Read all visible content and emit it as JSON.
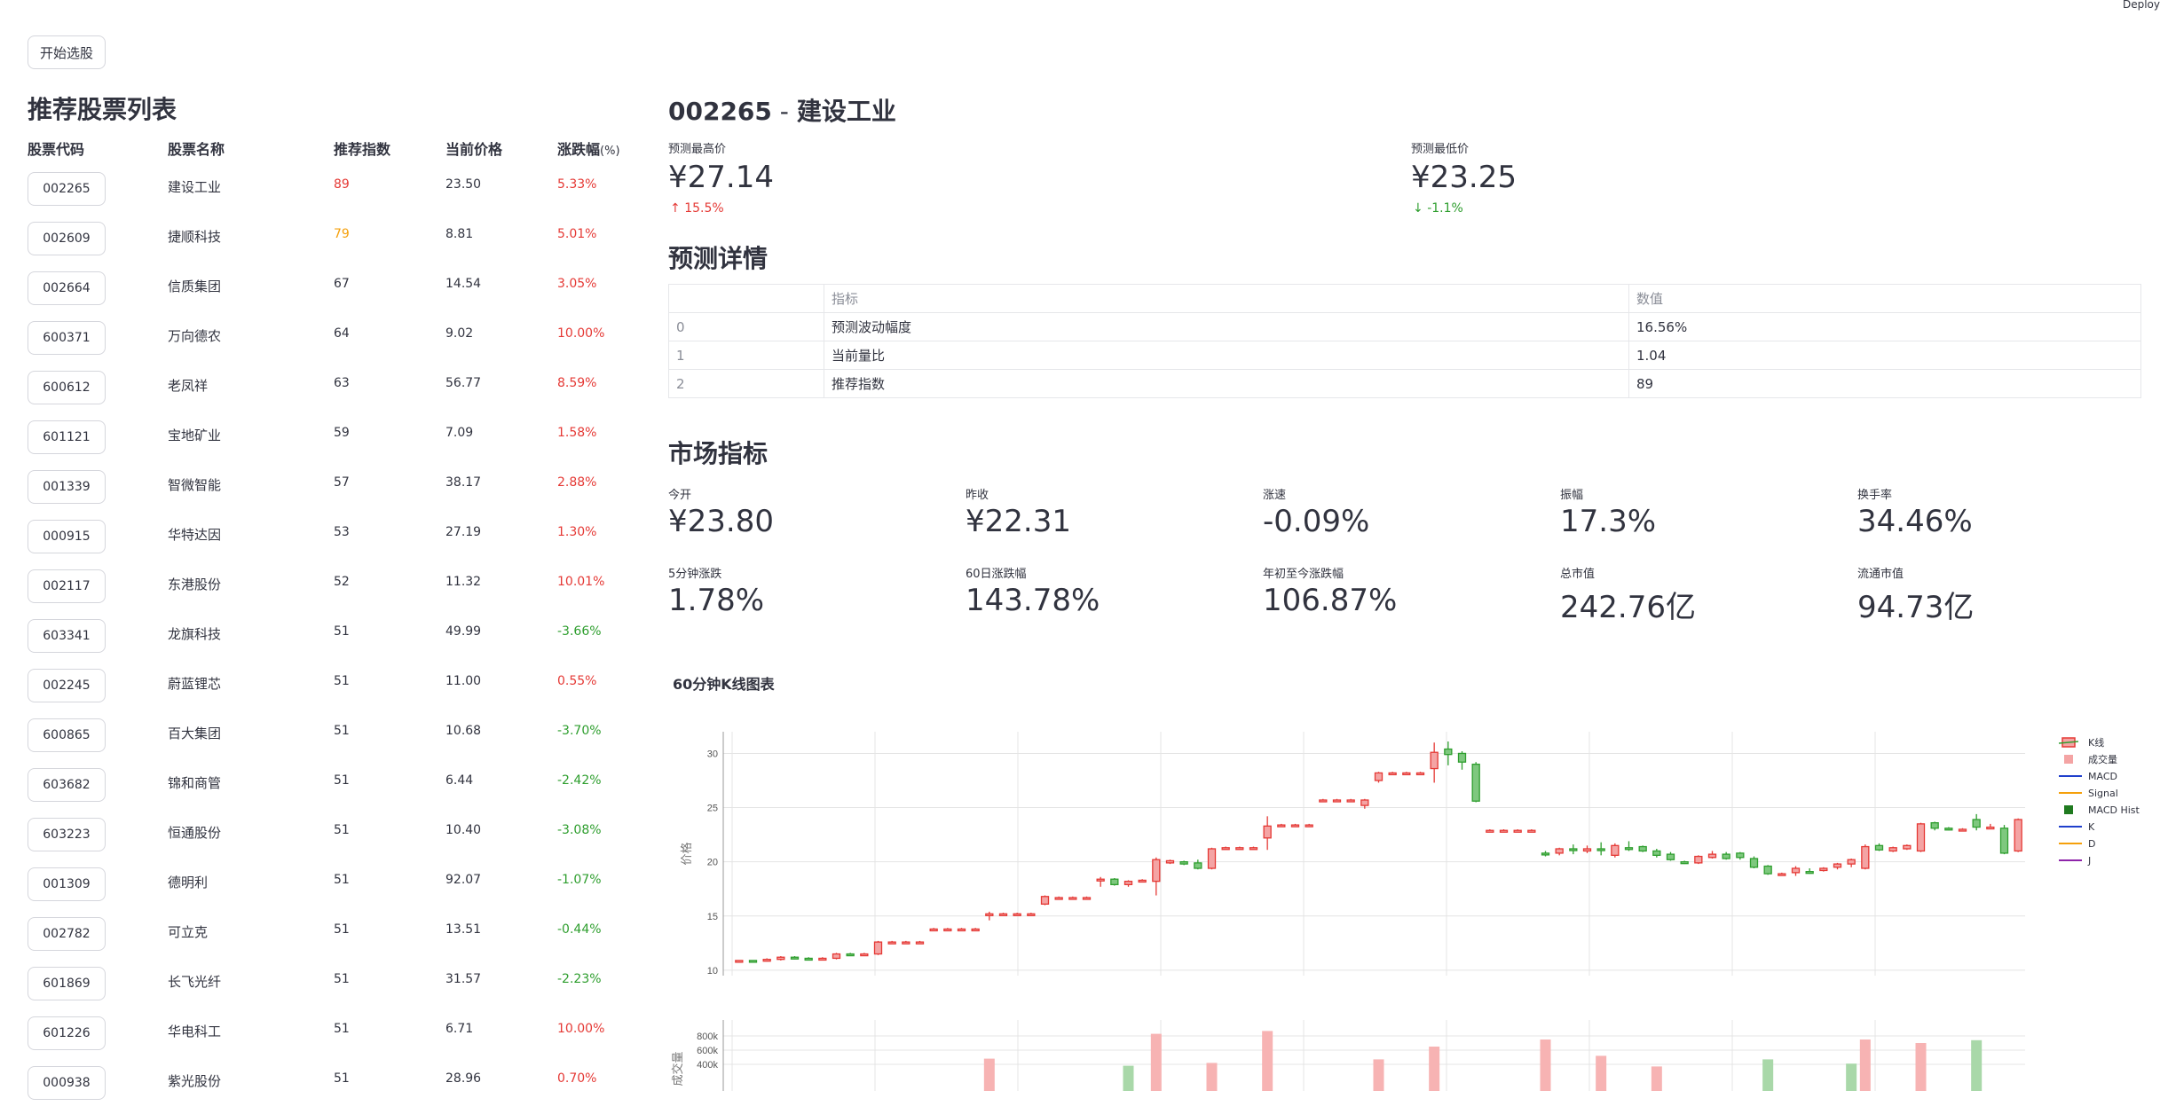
{
  "header": {
    "deploy": "Deploy"
  },
  "left": {
    "start_button": "开始选股",
    "title": "推荐股票列表",
    "columns": [
      "股票代码",
      "股票名称",
      "推荐指数",
      "当前价格",
      "涨跌幅"
    ],
    "change_unit": "(%)",
    "stocks": [
      {
        "code": "002265",
        "name": "建设工业",
        "score": "89",
        "price": "23.50",
        "change": "5.33%",
        "score_color": "#e53935",
        "change_color": "#e53935"
      },
      {
        "code": "002609",
        "name": "捷顺科技",
        "score": "79",
        "price": "8.81",
        "change": "5.01%",
        "score_color": "#f5a00b",
        "change_color": "#e53935"
      },
      {
        "code": "002664",
        "name": "信质集团",
        "score": "67",
        "price": "14.54",
        "change": "3.05%",
        "score_color": "#31333f",
        "change_color": "#e53935"
      },
      {
        "code": "600371",
        "name": "万向德农",
        "score": "64",
        "price": "9.02",
        "change": "10.00%",
        "score_color": "#31333f",
        "change_color": "#e53935"
      },
      {
        "code": "600612",
        "name": "老凤祥",
        "score": "63",
        "price": "56.77",
        "change": "8.59%",
        "score_color": "#31333f",
        "change_color": "#e53935"
      },
      {
        "code": "601121",
        "name": "宝地矿业",
        "score": "59",
        "price": "7.09",
        "change": "1.58%",
        "score_color": "#31333f",
        "change_color": "#e53935"
      },
      {
        "code": "001339",
        "name": "智微智能",
        "score": "57",
        "price": "38.17",
        "change": "2.88%",
        "score_color": "#31333f",
        "change_color": "#e53935"
      },
      {
        "code": "000915",
        "name": "华特达因",
        "score": "53",
        "price": "27.19",
        "change": "1.30%",
        "score_color": "#31333f",
        "change_color": "#e53935"
      },
      {
        "code": "002117",
        "name": "东港股份",
        "score": "52",
        "price": "11.32",
        "change": "10.01%",
        "score_color": "#31333f",
        "change_color": "#e53935"
      },
      {
        "code": "603341",
        "name": "龙旗科技",
        "score": "51",
        "price": "49.99",
        "change": "-3.66%",
        "score_color": "#31333f",
        "change_color": "#2e9e2e"
      },
      {
        "code": "002245",
        "name": "蔚蓝锂芯",
        "score": "51",
        "price": "11.00",
        "change": "0.55%",
        "score_color": "#31333f",
        "change_color": "#e53935"
      },
      {
        "code": "600865",
        "name": "百大集团",
        "score": "51",
        "price": "10.68",
        "change": "-3.70%",
        "score_color": "#31333f",
        "change_color": "#2e9e2e"
      },
      {
        "code": "603682",
        "name": "锦和商管",
        "score": "51",
        "price": "6.44",
        "change": "-2.42%",
        "score_color": "#31333f",
        "change_color": "#2e9e2e"
      },
      {
        "code": "603223",
        "name": "恒通股份",
        "score": "51",
        "price": "10.40",
        "change": "-3.08%",
        "score_color": "#31333f",
        "change_color": "#2e9e2e"
      },
      {
        "code": "001309",
        "name": "德明利",
        "score": "51",
        "price": "92.07",
        "change": "-1.07%",
        "score_color": "#31333f",
        "change_color": "#2e9e2e"
      },
      {
        "code": "002782",
        "name": "可立克",
        "score": "51",
        "price": "13.51",
        "change": "-0.44%",
        "score_color": "#31333f",
        "change_color": "#2e9e2e"
      },
      {
        "code": "601869",
        "name": "长飞光纤",
        "score": "51",
        "price": "31.57",
        "change": "-2.23%",
        "score_color": "#31333f",
        "change_color": "#2e9e2e"
      },
      {
        "code": "601226",
        "name": "华电科工",
        "score": "51",
        "price": "6.71",
        "change": "10.00%",
        "score_color": "#31333f",
        "change_color": "#e53935"
      },
      {
        "code": "000938",
        "name": "紫光股份",
        "score": "51",
        "price": "28.96",
        "change": "0.70%",
        "score_color": "#31333f",
        "change_color": "#e53935"
      }
    ]
  },
  "detail": {
    "code": "002265",
    "separator": " - ",
    "name": "建设工业",
    "pred_high_label": "预测最高价",
    "pred_high_value": "¥27.14",
    "pred_high_delta": "15.5%",
    "pred_low_label": "预测最低价",
    "pred_low_value": "¥23.25",
    "pred_low_delta": "-1.1%",
    "details_title": "预测详情",
    "table_headers": [
      "",
      "指标",
      "数值"
    ],
    "table_rows": [
      [
        "0",
        "预测波动幅度",
        "16.56%"
      ],
      [
        "1",
        "当前量比",
        "1.04"
      ],
      [
        "2",
        "推荐指数",
        "89"
      ]
    ],
    "market_title": "市场指标",
    "metrics": [
      {
        "label": "今开",
        "value": "¥23.80"
      },
      {
        "label": "昨收",
        "value": "¥22.31"
      },
      {
        "label": "涨速",
        "value": "-0.09%"
      },
      {
        "label": "振幅",
        "value": "17.3%"
      },
      {
        "label": "换手率",
        "value": "34.46%"
      },
      {
        "label": "5分钟涨跌",
        "value": "1.78%"
      },
      {
        "label": "60日涨跌幅",
        "value": "143.78%"
      },
      {
        "label": "年初至今涨跌幅",
        "value": "106.87%"
      },
      {
        "label": "总市值",
        "value": "242.76亿"
      },
      {
        "label": "流通市值",
        "value": "94.73亿"
      }
    ],
    "chart_title": "60分钟K线图表"
  },
  "colors": {
    "up": "#e53935",
    "down": "#2e9e2e",
    "accent_orange": "#f5a00b"
  },
  "chart_data": {
    "type": "candlestick",
    "price_ylabel": "价格",
    "volume_ylabel": "成交量",
    "price_yticks": [
      10,
      15,
      20,
      25,
      30
    ],
    "price_ylim": [
      9.5,
      32
    ],
    "volume_yticks_values": [
      400000,
      600000,
      800000
    ],
    "volume_ytick_labels": [
      "400k",
      "600k",
      "800k"
    ],
    "legend": [
      "K线",
      "成交量",
      "MACD",
      "Signal",
      "MACD Hist",
      "K",
      "D",
      "J"
    ],
    "legend_colors": [
      "#e53935",
      "#f4a4a4",
      "#1f3fcc",
      "#f5a00b",
      "#1f7a1f",
      "#1f3fcc",
      "#f5a00b",
      "#8e24aa"
    ],
    "candles": [
      [
        10.8,
        10.9,
        10.7,
        10.8
      ],
      [
        10.9,
        10.8,
        10.7,
        10.9
      ],
      [
        10.9,
        11.0,
        10.8,
        11.1
      ],
      [
        11.0,
        11.2,
        10.9,
        11.3
      ],
      [
        11.2,
        11.1,
        11.0,
        11.3
      ],
      [
        11.1,
        11.0,
        10.9,
        11.2
      ],
      [
        11.0,
        11.1,
        10.9,
        11.2
      ],
      [
        11.1,
        11.5,
        11.0,
        11.6
      ],
      [
        11.5,
        11.4,
        11.3,
        11.6
      ],
      [
        11.4,
        11.5,
        11.3,
        11.6
      ],
      [
        11.5,
        12.6,
        11.4,
        12.7
      ],
      [
        12.6,
        12.6,
        12.5,
        12.7
      ],
      [
        12.6,
        12.6,
        12.5,
        12.7
      ],
      [
        12.6,
        12.6,
        12.5,
        12.7
      ],
      [
        13.8,
        13.8,
        13.7,
        13.9
      ],
      [
        13.8,
        13.8,
        13.7,
        13.9
      ],
      [
        13.8,
        13.8,
        13.7,
        13.9
      ],
      [
        13.8,
        13.8,
        13.7,
        13.9
      ],
      [
        15.1,
        15.2,
        14.6,
        15.4
      ],
      [
        15.2,
        15.2,
        15.1,
        15.3
      ],
      [
        15.2,
        15.2,
        15.1,
        15.3
      ],
      [
        15.2,
        15.2,
        15.1,
        15.3
      ],
      [
        16.1,
        16.8,
        16.0,
        16.9
      ],
      [
        16.7,
        16.7,
        16.6,
        16.8
      ],
      [
        16.7,
        16.7,
        16.6,
        16.8
      ],
      [
        16.7,
        16.7,
        16.6,
        16.8
      ],
      [
        18.3,
        18.4,
        17.7,
        18.6
      ],
      [
        18.4,
        17.9,
        17.8,
        18.5
      ],
      [
        17.9,
        18.2,
        17.7,
        18.3
      ],
      [
        18.2,
        18.3,
        18.1,
        18.4
      ],
      [
        18.2,
        20.2,
        16.9,
        20.4
      ],
      [
        19.9,
        20.1,
        19.8,
        20.2
      ],
      [
        20.0,
        19.8,
        19.7,
        20.1
      ],
      [
        19.9,
        19.4,
        19.3,
        20.2
      ],
      [
        19.4,
        21.2,
        19.3,
        21.3
      ],
      [
        21.3,
        21.3,
        21.2,
        21.4
      ],
      [
        21.3,
        21.3,
        21.2,
        21.4
      ],
      [
        21.3,
        21.3,
        21.2,
        21.4
      ],
      [
        22.2,
        23.3,
        21.1,
        24.2
      ],
      [
        23.4,
        23.4,
        23.3,
        23.5
      ],
      [
        23.4,
        23.4,
        23.3,
        23.5
      ],
      [
        23.4,
        23.4,
        23.3,
        23.5
      ],
      [
        25.7,
        25.7,
        25.6,
        25.8
      ],
      [
        25.7,
        25.7,
        25.6,
        25.8
      ],
      [
        25.7,
        25.7,
        25.6,
        25.8
      ],
      [
        25.2,
        25.7,
        24.9,
        25.8
      ],
      [
        27.5,
        28.2,
        27.3,
        28.3
      ],
      [
        28.2,
        28.2,
        28.1,
        28.3
      ],
      [
        28.2,
        28.2,
        28.1,
        28.3
      ],
      [
        28.2,
        28.2,
        28.1,
        28.3
      ],
      [
        28.6,
        30.1,
        27.3,
        31.0
      ],
      [
        30.4,
        29.9,
        28.9,
        31.1
      ],
      [
        30.0,
        29.2,
        28.5,
        30.2
      ],
      [
        29.0,
        25.6,
        25.5,
        29.2
      ],
      [
        22.9,
        22.9,
        22.8,
        23.0
      ],
      [
        22.9,
        22.9,
        22.8,
        23.0
      ],
      [
        22.9,
        22.9,
        22.8,
        23.0
      ],
      [
        22.9,
        22.9,
        22.8,
        23.0
      ],
      [
        20.8,
        20.7,
        20.5,
        21.0
      ],
      [
        20.8,
        21.2,
        20.6,
        21.3
      ],
      [
        21.2,
        21.1,
        20.7,
        21.6
      ],
      [
        21.0,
        21.2,
        20.8,
        21.5
      ],
      [
        21.2,
        21.1,
        20.6,
        21.8
      ],
      [
        20.6,
        21.5,
        20.4,
        21.7
      ],
      [
        21.3,
        21.2,
        21.0,
        21.9
      ],
      [
        21.4,
        21.0,
        20.9,
        21.5
      ],
      [
        21.0,
        20.6,
        20.4,
        21.2
      ],
      [
        20.7,
        20.2,
        20.1,
        20.9
      ],
      [
        20.0,
        19.9,
        19.8,
        20.1
      ],
      [
        19.9,
        20.5,
        19.8,
        20.6
      ],
      [
        20.4,
        20.7,
        20.3,
        21.0
      ],
      [
        20.7,
        20.3,
        20.2,
        20.9
      ],
      [
        20.8,
        20.4,
        20.2,
        20.9
      ],
      [
        20.3,
        19.5,
        19.4,
        20.5
      ],
      [
        19.6,
        18.9,
        18.8,
        19.7
      ],
      [
        18.9,
        18.9,
        18.8,
        19.0
      ],
      [
        19.0,
        19.4,
        18.7,
        19.6
      ],
      [
        19.1,
        19.0,
        18.9,
        19.4
      ],
      [
        19.2,
        19.4,
        19.1,
        19.5
      ],
      [
        19.5,
        19.8,
        19.3,
        19.9
      ],
      [
        19.8,
        20.2,
        19.5,
        20.3
      ],
      [
        19.4,
        21.4,
        19.3,
        21.6
      ],
      [
        21.5,
        21.1,
        21.0,
        21.7
      ],
      [
        21.0,
        21.3,
        20.9,
        21.4
      ],
      [
        21.2,
        21.5,
        21.1,
        21.6
      ],
      [
        21.0,
        23.5,
        20.9,
        23.6
      ],
      [
        23.6,
        23.1,
        22.9,
        23.7
      ],
      [
        23.1,
        23.0,
        22.9,
        23.2
      ],
      [
        22.9,
        23.0,
        22.8,
        23.1
      ],
      [
        23.9,
        23.2,
        22.9,
        24.4
      ],
      [
        23.2,
        23.2,
        23.0,
        23.5
      ],
      [
        23.1,
        20.8,
        20.7,
        23.4
      ],
      [
        21.0,
        23.9,
        20.9,
        24.0
      ]
    ],
    "volume_bars": [
      {
        "index": 18,
        "value": 480000,
        "dir": "up"
      },
      {
        "index": 28,
        "value": 380000,
        "dir": "down"
      },
      {
        "index": 30,
        "value": 830000,
        "dir": "up"
      },
      {
        "index": 34,
        "value": 420000,
        "dir": "up"
      },
      {
        "index": 38,
        "value": 870000,
        "dir": "up"
      },
      {
        "index": 46,
        "value": 470000,
        "dir": "up"
      },
      {
        "index": 50,
        "value": 650000,
        "dir": "up"
      },
      {
        "index": 58,
        "value": 750000,
        "dir": "up"
      },
      {
        "index": 62,
        "value": 520000,
        "dir": "up"
      },
      {
        "index": 66,
        "value": 370000,
        "dir": "up"
      },
      {
        "index": 74,
        "value": 470000,
        "dir": "down"
      },
      {
        "index": 80,
        "value": 410000,
        "dir": "down"
      },
      {
        "index": 81,
        "value": 750000,
        "dir": "up"
      },
      {
        "index": 85,
        "value": 700000,
        "dir": "up"
      },
      {
        "index": 89,
        "value": 740000,
        "dir": "down"
      }
    ]
  }
}
